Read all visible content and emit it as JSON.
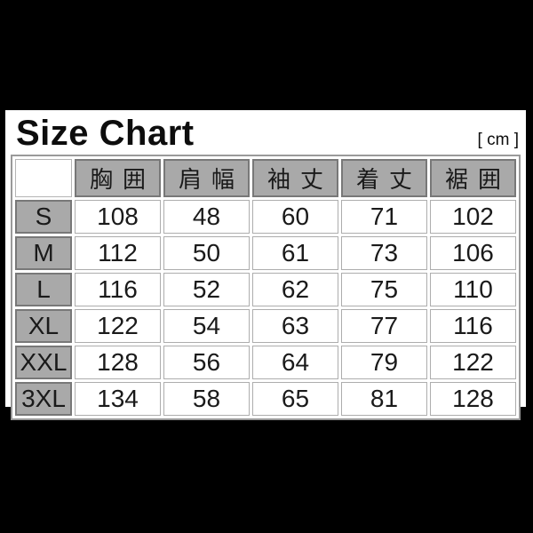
{
  "title": "Size Chart",
  "unit_label": "[ cm ]",
  "colors": {
    "page_background": "#000000",
    "panel_background": "#ffffff",
    "header_cell_background": "#a9a9a9",
    "header_cell_border": "#787878",
    "grid_border": "#adadad",
    "table_outer_border": "#9a9a9a",
    "text": "#1a1a1a"
  },
  "table": {
    "corner_label": "",
    "columns": [
      "胸囲",
      "肩幅",
      "袖丈",
      "着丈",
      "裾囲"
    ],
    "rows": [
      {
        "size": "S",
        "values": [
          "108",
          "48",
          "60",
          "71",
          "102"
        ]
      },
      {
        "size": "M",
        "values": [
          "112",
          "50",
          "61",
          "73",
          "106"
        ]
      },
      {
        "size": "L",
        "values": [
          "116",
          "52",
          "62",
          "75",
          "110"
        ]
      },
      {
        "size": "XL",
        "values": [
          "122",
          "54",
          "63",
          "77",
          "116"
        ]
      },
      {
        "size": "XXL",
        "values": [
          "128",
          "56",
          "64",
          "79",
          "122"
        ]
      },
      {
        "size": "3XL",
        "values": [
          "134",
          "58",
          "65",
          "81",
          "128"
        ]
      }
    ]
  },
  "chart_data": {
    "type": "table",
    "title": "Size Chart",
    "unit": "cm",
    "row_headers": [
      "S",
      "M",
      "L",
      "XL",
      "XXL",
      "3XL"
    ],
    "column_headers": [
      "胸囲",
      "肩幅",
      "袖丈",
      "着丈",
      "裾囲"
    ],
    "rows": [
      [
        108,
        48,
        60,
        71,
        102
      ],
      [
        112,
        50,
        61,
        73,
        106
      ],
      [
        116,
        52,
        62,
        75,
        110
      ],
      [
        122,
        54,
        63,
        77,
        116
      ],
      [
        128,
        56,
        64,
        79,
        122
      ],
      [
        134,
        58,
        65,
        81,
        128
      ]
    ]
  }
}
